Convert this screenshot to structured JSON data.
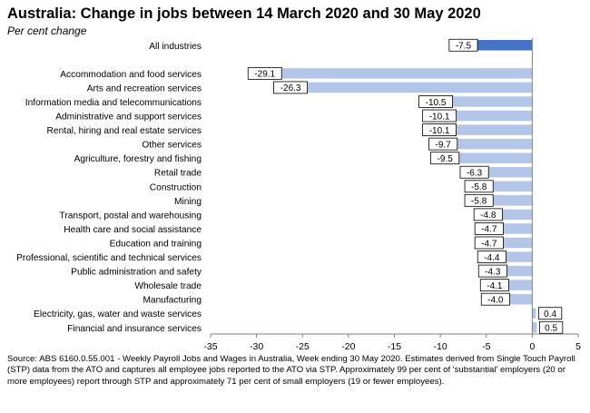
{
  "title": "Australia: Change in jobs between 14 March 2020 and 30 May 2020",
  "subtitle": "Per cent change",
  "source": "Source: ABS 6160.0.55.001 - Weekly Payroll Jobs and Wages in Australia, Week ending 30 May 2020. Estimates derived from Single Touch Payroll (STP) data from the ATO and captures all employee jobs reported to the ATO via STP. Approximately 99 per cent of 'substantial' employers (20 or more employees) report through STP and approximately 71 per cent of small employers (19 or fewer employees).",
  "colors": {
    "highlight": "#4472C4",
    "bar": "#B4C6E7",
    "axis": "#808080"
  },
  "chart_data": {
    "type": "bar",
    "orientation": "horizontal",
    "title": "Australia: Change in jobs between 14 March 2020 and 30 May 2020",
    "subtitle": "Per cent change",
    "xlim": [
      -35,
      5
    ],
    "xticks": [
      -35,
      -30,
      -25,
      -20,
      -15,
      -10,
      -5,
      0,
      5
    ],
    "grid": false,
    "legend": "none",
    "categories": [
      "All industries",
      "",
      "Accommodation and food services",
      "Arts and recreation services",
      "Information media and telecommunications",
      "Administrative and support services",
      "Rental, hiring and real estate services",
      "Other services",
      "Agriculture, forestry and fishing",
      "Retail trade",
      "Construction",
      "Mining",
      "Transport, postal and warehousing",
      "Health care and social assistance",
      "Education and training",
      "Professional, scientific and technical services",
      "Public administration and safety",
      "Wholesale trade",
      "Manufacturing",
      "Electricity, gas, water and waste services",
      "Financial and insurance services"
    ],
    "values": [
      -7.5,
      null,
      -29.1,
      -26.3,
      -10.5,
      -10.1,
      -10.1,
      -9.7,
      -9.5,
      -6.3,
      -5.8,
      -5.8,
      -4.8,
      -4.7,
      -4.7,
      -4.4,
      -4.3,
      -4.1,
      -4.0,
      0.4,
      0.5
    ],
    "labels": [
      "-7.5",
      "",
      "-29.1",
      "-26.3",
      "-10.5",
      "-10.1",
      "-10.1",
      "-9.7",
      "-9.5",
      "-6.3",
      "-5.8",
      "-5.8",
      "-4.8",
      "-4.7",
      "-4.7",
      "-4.4",
      "-4.3",
      "-4.1",
      "-4.0",
      "0.4",
      "0.5"
    ],
    "highlight_index": 0
  }
}
